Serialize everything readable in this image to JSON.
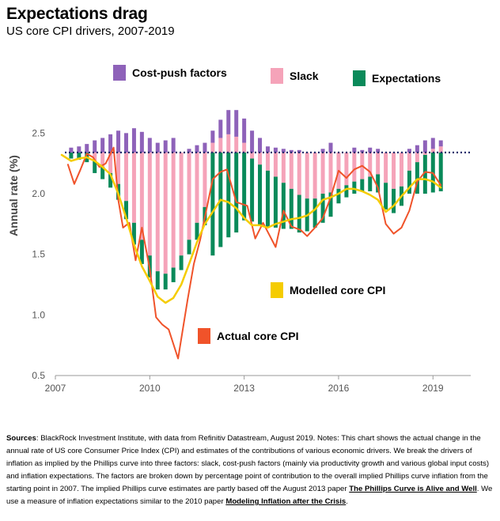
{
  "header": {
    "title": "Expectations drag",
    "subtitle": "US core CPI drivers, 2007-2019"
  },
  "colors": {
    "cost_push": "#8e62b9",
    "slack": "#f5a3b9",
    "expectations": "#0a8a5a",
    "modelled": "#f5cc00",
    "actual": "#f0532a",
    "dotted": "#1f2a6b",
    "axis": "#9a9a9a",
    "tick_text": "#555555"
  },
  "chart_data": {
    "type": "bar",
    "ylabel": "Annual rate (%)",
    "ylim": [
      0.5,
      2.75
    ],
    "yticks": [
      "0.5",
      "1.0",
      "1.5",
      "2.0",
      "2.5"
    ],
    "xlim": [
      2007.0,
      2020.2
    ],
    "xticks": [
      2007,
      2010,
      2013,
      2016,
      2019
    ],
    "xtick_labels": [
      "2007",
      "2010",
      "2013",
      "2016",
      "2019"
    ],
    "baseline": 2.34,
    "legend": {
      "cost_push": "Cost-push factors",
      "slack": "Slack",
      "expectations": "Expectations",
      "modelled": "Modelled core CPI",
      "actual": "Actual core CPI"
    },
    "bar_x": [
      2007.5,
      2007.75,
      2008.0,
      2008.25,
      2008.5,
      2008.75,
      2009.0,
      2009.25,
      2009.5,
      2009.75,
      2010.0,
      2010.25,
      2010.5,
      2010.75,
      2011.0,
      2011.25,
      2011.5,
      2011.75,
      2012.0,
      2012.25,
      2012.5,
      2012.75,
      2013.0,
      2013.25,
      2013.5,
      2013.75,
      2014.0,
      2014.25,
      2014.5,
      2014.75,
      2015.0,
      2015.25,
      2015.5,
      2015.75,
      2016.0,
      2016.25,
      2016.5,
      2016.75,
      2017.0,
      2017.25,
      2017.5,
      2017.75,
      2018.0,
      2018.25,
      2018.5,
      2018.75,
      2019.0,
      2019.25
    ],
    "cost_push": [
      0.04,
      0.05,
      0.07,
      0.1,
      0.12,
      0.15,
      0.18,
      0.16,
      0.2,
      0.17,
      0.12,
      0.08,
      0.1,
      0.12,
      0.0,
      0.03,
      0.06,
      0.08,
      0.1,
      0.15,
      0.2,
      0.22,
      0.2,
      0.18,
      0.12,
      0.05,
      0.04,
      0.03,
      0.02,
      0.02,
      0.0,
      0.0,
      0.03,
      0.08,
      0.0,
      0.0,
      0.04,
      0.02,
      0.04,
      0.03,
      0.0,
      0.0,
      0.0,
      0.03,
      0.06,
      0.1,
      0.09,
      0.05
    ],
    "slack": [
      0.0,
      0.0,
      0.0,
      -0.07,
      -0.12,
      -0.17,
      -0.26,
      -0.4,
      -0.58,
      -0.72,
      -0.85,
      -0.98,
      -1.0,
      -0.95,
      -0.85,
      -0.72,
      -0.58,
      -0.45,
      0.08,
      0.12,
      0.15,
      0.13,
      0.08,
      -0.05,
      -0.1,
      -0.15,
      -0.2,
      -0.25,
      -0.3,
      -0.35,
      -0.38,
      -0.38,
      -0.34,
      -0.33,
      -0.3,
      -0.27,
      -0.24,
      -0.22,
      -0.2,
      -0.18,
      -0.25,
      -0.3,
      -0.28,
      -0.15,
      -0.08,
      -0.02,
      0.03,
      0.05
    ],
    "expectations": [
      -0.05,
      -0.06,
      -0.08,
      -0.1,
      -0.1,
      -0.12,
      -0.13,
      -0.15,
      -0.18,
      -0.2,
      -0.18,
      -0.15,
      -0.13,
      -0.12,
      -0.12,
      -0.12,
      -0.14,
      -0.15,
      -0.85,
      -0.78,
      -0.7,
      -0.66,
      -0.56,
      -0.52,
      -0.5,
      -0.47,
      -0.42,
      -0.38,
      -0.33,
      -0.31,
      -0.27,
      -0.24,
      -0.24,
      -0.2,
      -0.12,
      -0.1,
      -0.1,
      -0.1,
      -0.12,
      -0.15,
      -0.22,
      -0.2,
      -0.16,
      -0.19,
      -0.26,
      -0.32,
      -0.33,
      -0.32
    ],
    "modelled_x": [
      2007.2,
      2007.5,
      2007.75,
      2008.0,
      2008.25,
      2008.5,
      2008.75,
      2009.0,
      2009.25,
      2009.5,
      2009.75,
      2010.0,
      2010.25,
      2010.5,
      2010.75,
      2011.0,
      2011.25,
      2011.5,
      2011.75,
      2012.0,
      2012.25,
      2012.5,
      2012.75,
      2013.0,
      2013.25,
      2013.5,
      2013.75,
      2014.0,
      2014.25,
      2014.5,
      2014.75,
      2015.0,
      2015.25,
      2015.5,
      2015.75,
      2016.0,
      2016.25,
      2016.5,
      2016.75,
      2017.0,
      2017.25,
      2017.5,
      2017.75,
      2018.0,
      2018.25,
      2018.5,
      2018.75,
      2019.0,
      2019.25
    ],
    "modelled_y": [
      2.32,
      2.27,
      2.29,
      2.3,
      2.27,
      2.22,
      2.16,
      2.0,
      1.8,
      1.58,
      1.4,
      1.28,
      1.15,
      1.1,
      1.14,
      1.25,
      1.42,
      1.6,
      1.75,
      1.85,
      1.95,
      1.93,
      1.88,
      1.8,
      1.74,
      1.74,
      1.72,
      1.75,
      1.77,
      1.79,
      1.8,
      1.82,
      1.87,
      1.95,
      1.97,
      2.0,
      2.04,
      2.04,
      2.02,
      1.99,
      1.95,
      1.85,
      1.9,
      1.98,
      2.05,
      2.12,
      2.12,
      2.1,
      2.05
    ],
    "actual_x": [
      2007.4,
      2007.6,
      2007.8,
      2008.0,
      2008.2,
      2008.4,
      2008.6,
      2008.85,
      2009.0,
      2009.15,
      2009.35,
      2009.55,
      2009.75,
      2010.0,
      2010.2,
      2010.4,
      2010.6,
      2010.9,
      2011.2,
      2011.4,
      2011.6,
      2011.85,
      2012.0,
      2012.25,
      2012.45,
      2012.75,
      2013.1,
      2013.35,
      2013.6,
      2014.0,
      2014.25,
      2014.5,
      2014.8,
      2015.0,
      2015.25,
      2015.5,
      2015.75,
      2016.0,
      2016.25,
      2016.5,
      2016.75,
      2017.0,
      2017.25,
      2017.5,
      2017.75,
      2018.0,
      2018.25,
      2018.5,
      2018.75,
      2019.0,
      2019.25
    ],
    "actual_y": [
      2.24,
      2.08,
      2.2,
      2.33,
      2.3,
      2.22,
      2.25,
      2.38,
      1.95,
      1.72,
      1.76,
      1.45,
      1.72,
      1.38,
      0.98,
      0.92,
      0.88,
      0.64,
      1.12,
      1.42,
      1.62,
      1.93,
      2.12,
      2.18,
      2.2,
      1.93,
      1.9,
      1.63,
      1.76,
      1.56,
      1.86,
      1.73,
      1.7,
      1.65,
      1.72,
      1.8,
      1.97,
      2.19,
      2.13,
      2.2,
      2.23,
      2.18,
      2.05,
      1.75,
      1.67,
      1.72,
      1.86,
      2.1,
      2.18,
      2.17,
      2.07
    ]
  },
  "footer": {
    "sources_label": "Sources",
    "sources_text": ": BlackRock Investment Institute, with data from Refinitiv Datastream, August 2019. Notes: This chart shows the actual change in the annual rate of US core Consumer Price Index (CPI) and estimates of the contributions of various economic drivers. We break the drivers of inflation as implied by the Phillips curve into three factors: slack, cost-push factors (mainly via productivity growth and various global input costs) and inflation expectations. The factors are broken down by percentage point of contribution to the overall implied Phillips curve inflation from the starting point in 2007. The implied Phillips curve estimates are partly based off the August 2013 paper ",
    "link1": "The Phillips Curve is Alive and Well",
    "text2": ". We use a measure of inflation expectations similar to the 2010 paper ",
    "link2": "Modeling Inflation after the Crisis",
    "text3": "."
  }
}
